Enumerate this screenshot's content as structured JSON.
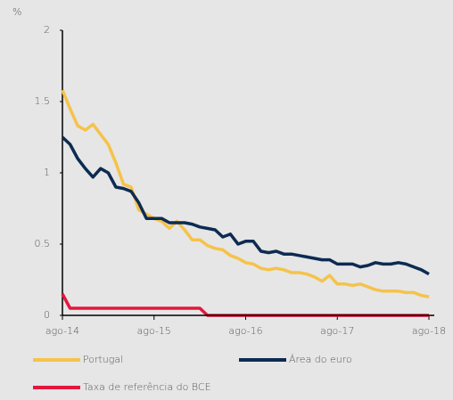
{
  "chart_data": {
    "type": "line",
    "y_unit": "%",
    "categories": [
      "ago-14",
      null,
      null,
      null,
      null,
      null,
      null,
      null,
      null,
      null,
      null,
      null,
      "ago-15",
      null,
      null,
      null,
      null,
      null,
      null,
      null,
      null,
      null,
      null,
      null,
      "ago-16",
      null,
      null,
      null,
      null,
      null,
      null,
      null,
      null,
      null,
      null,
      null,
      "ago-17",
      null,
      null,
      null,
      null,
      null,
      null,
      null,
      null,
      null,
      null,
      null,
      "ago-18"
    ],
    "series": [
      {
        "name": "Portugal",
        "color": "#f5c34a",
        "values": [
          1.58,
          1.45,
          1.33,
          1.3,
          1.34,
          1.27,
          1.2,
          1.07,
          0.92,
          0.9,
          0.74,
          0.71,
          0.68,
          0.66,
          0.61,
          0.66,
          0.6,
          0.53,
          0.53,
          0.49,
          0.47,
          0.46,
          0.42,
          0.4,
          0.37,
          0.36,
          0.33,
          0.32,
          0.33,
          0.32,
          0.3,
          0.3,
          0.29,
          0.27,
          0.24,
          0.28,
          0.22,
          0.22,
          0.21,
          0.22,
          0.2,
          0.18,
          0.17,
          0.17,
          0.17,
          0.16,
          0.16,
          0.14,
          0.13
        ]
      },
      {
        "name": "Área do euro",
        "color": "#0d2b52",
        "values": [
          1.25,
          1.2,
          1.1,
          1.03,
          0.97,
          1.03,
          1.0,
          0.9,
          0.89,
          0.87,
          0.79,
          0.68,
          0.68,
          0.68,
          0.65,
          0.65,
          0.65,
          0.64,
          0.62,
          0.61,
          0.6,
          0.55,
          0.57,
          0.5,
          0.52,
          0.52,
          0.45,
          0.44,
          0.45,
          0.43,
          0.43,
          0.42,
          0.41,
          0.4,
          0.39,
          0.39,
          0.36,
          0.36,
          0.36,
          0.34,
          0.35,
          0.37,
          0.36,
          0.36,
          0.37,
          0.36,
          0.34,
          0.32,
          0.29
        ]
      },
      {
        "name": "Taxa de referência do BCE",
        "color": "#e3173e",
        "values": [
          0.15,
          0.05,
          0.05,
          0.05,
          0.05,
          0.05,
          0.05,
          0.05,
          0.05,
          0.05,
          0.05,
          0.05,
          0.05,
          0.05,
          0.05,
          0.05,
          0.05,
          0.05,
          0.05,
          0,
          0,
          0,
          0,
          0,
          0,
          0,
          0,
          0,
          0,
          0,
          0,
          0,
          0,
          0,
          0,
          0,
          0,
          0,
          0,
          0,
          0,
          0,
          0,
          0,
          0,
          0,
          0,
          0,
          0
        ]
      }
    ],
    "ylim": [
      0,
      2
    ],
    "yticks": [
      0,
      0.5,
      1,
      1.5,
      2
    ],
    "grid": false
  }
}
